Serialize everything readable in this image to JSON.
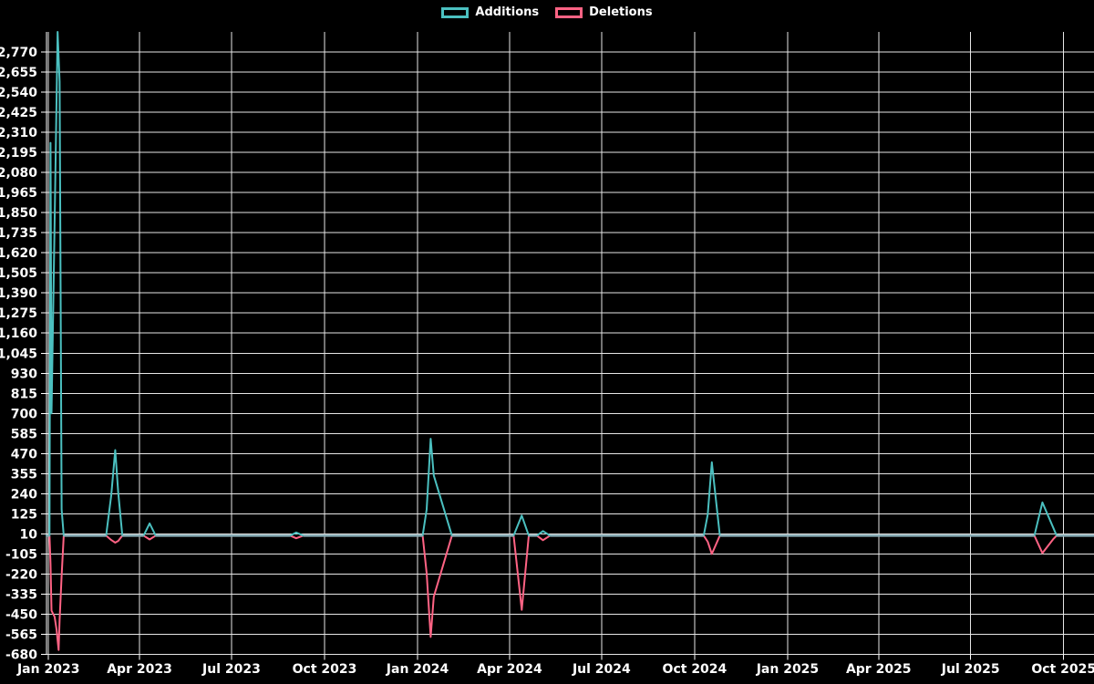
{
  "legend": {
    "items": [
      {
        "label": "Additions",
        "color": "#4bc0c0"
      },
      {
        "label": "Deletions",
        "color": "#ff6384"
      }
    ]
  },
  "colors": {
    "background": "#000000",
    "grid": "#e6e6e6",
    "axis": "#ffffff",
    "tick_text": "#ffffff",
    "additions": "#4bc0c0",
    "deletions": "#ff6384",
    "zero_baseline_overlap": "#8aafb8"
  },
  "chart_data": {
    "type": "line",
    "title": "",
    "xlabel": "",
    "ylabel": "",
    "legend_position": "top",
    "grid": true,
    "x_axis": {
      "kind": "time",
      "start": "2022-12-30",
      "end": "2025-10-31",
      "ticks": [
        {
          "label": "Jan 2023",
          "date": "2023-01-01"
        },
        {
          "label": "Apr 2023",
          "date": "2023-04-01"
        },
        {
          "label": "Jul 2023",
          "date": "2023-07-01"
        },
        {
          "label": "Oct 2023",
          "date": "2023-10-01"
        },
        {
          "label": "Jan 2024",
          "date": "2024-01-01"
        },
        {
          "label": "Apr 2024",
          "date": "2024-04-01"
        },
        {
          "label": "Jul 2024",
          "date": "2024-07-01"
        },
        {
          "label": "Oct 2024",
          "date": "2024-10-01"
        },
        {
          "label": "Jan 2025",
          "date": "2025-01-01"
        },
        {
          "label": "Apr 2025",
          "date": "2025-04-01"
        },
        {
          "label": "Jul 2025",
          "date": "2025-07-01"
        },
        {
          "label": "Oct 2025",
          "date": "2025-10-01"
        }
      ]
    },
    "y_axis": {
      "min": -680,
      "max": 2885,
      "tick_step": 115,
      "tick_values": [
        2770,
        2655,
        2540,
        2425,
        2310,
        2195,
        2080,
        1965,
        1850,
        1735,
        1620,
        1505,
        1390,
        1275,
        1160,
        1045,
        930,
        815,
        700,
        585,
        470,
        355,
        240,
        125,
        10,
        -105,
        -220,
        -335,
        -450,
        -565,
        -680
      ]
    },
    "series_names": [
      "Additions",
      "Deletions"
    ],
    "rows": [
      [
        "2022-12-30",
        0,
        0
      ],
      [
        "2023-01-02",
        0,
        0
      ],
      [
        "2023-01-03",
        2250,
        -160
      ],
      [
        "2023-01-04",
        700,
        -430
      ],
      [
        "2023-01-07",
        1790,
        -465
      ],
      [
        "2023-01-09",
        2520,
        -540
      ],
      [
        "2023-01-10",
        2885,
        -600
      ],
      [
        "2023-01-11",
        2740,
        -655
      ],
      [
        "2023-01-12",
        2600,
        -480
      ],
      [
        "2023-01-14",
        150,
        -230
      ],
      [
        "2023-01-16",
        0,
        0
      ],
      [
        "2023-02-27",
        0,
        0
      ],
      [
        "2023-03-04",
        230,
        -25
      ],
      [
        "2023-03-08",
        490,
        -40
      ],
      [
        "2023-03-11",
        245,
        -30
      ],
      [
        "2023-03-15",
        0,
        0
      ],
      [
        "2023-04-05",
        0,
        0
      ],
      [
        "2023-04-11",
        70,
        -22
      ],
      [
        "2023-04-17",
        0,
        0
      ],
      [
        "2023-08-28",
        0,
        0
      ],
      [
        "2023-09-03",
        18,
        -15
      ],
      [
        "2023-09-10",
        0,
        0
      ],
      [
        "2024-01-06",
        0,
        0
      ],
      [
        "2024-01-10",
        150,
        -215
      ],
      [
        "2024-01-14",
        555,
        -580
      ],
      [
        "2024-01-17",
        345,
        -350
      ],
      [
        "2024-02-04",
        0,
        0
      ],
      [
        "2024-04-05",
        0,
        0
      ],
      [
        "2024-04-13",
        115,
        -425
      ],
      [
        "2024-04-20",
        0,
        0
      ],
      [
        "2024-04-28",
        0,
        0
      ],
      [
        "2024-05-04",
        26,
        -26
      ],
      [
        "2024-05-11",
        0,
        0
      ],
      [
        "2024-10-10",
        0,
        0
      ],
      [
        "2024-10-14",
        120,
        -35
      ],
      [
        "2024-10-18",
        420,
        -105
      ],
      [
        "2024-10-26",
        0,
        0
      ],
      [
        "2025-09-02",
        0,
        0
      ],
      [
        "2025-09-10",
        190,
        -100
      ],
      [
        "2025-09-21",
        42,
        -18
      ],
      [
        "2025-09-24",
        0,
        0
      ],
      [
        "2025-10-31",
        0,
        0
      ]
    ]
  }
}
